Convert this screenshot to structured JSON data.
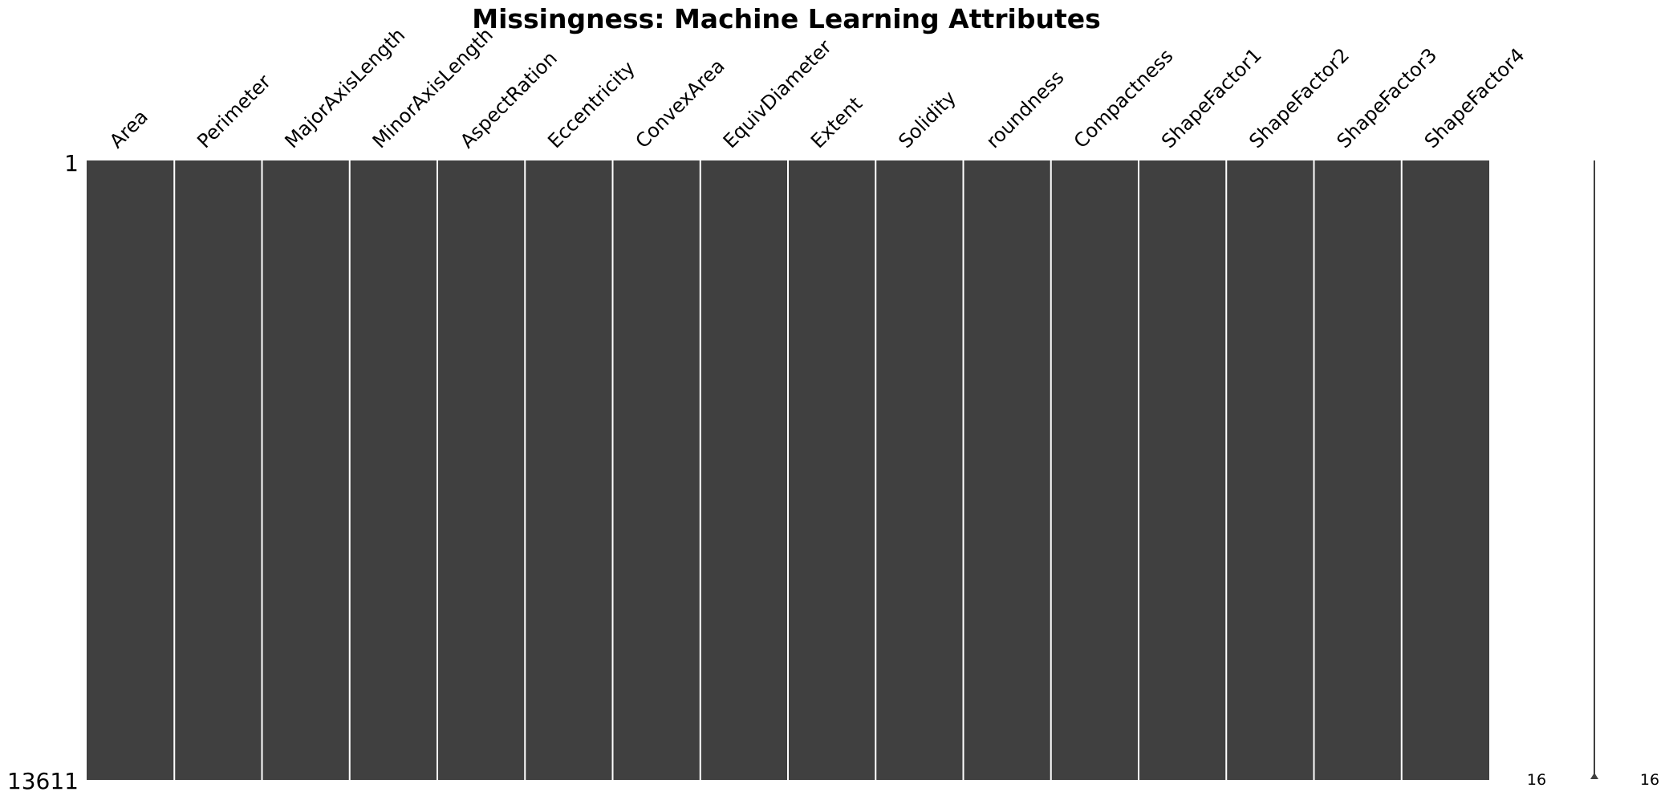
{
  "chart_data": {
    "type": "heatmap",
    "title": "Missingness: Machine Learning Attributes",
    "columns": [
      "Area",
      "Perimeter",
      "MajorAxisLength",
      "MinorAxisLength",
      "AspectRation",
      "Eccentricity",
      "ConvexArea",
      "EquivDiameter",
      "Extent",
      "Solidity",
      "roundness",
      "Compactness",
      "ShapeFactor1",
      "ShapeFactor2",
      "ShapeFactor3",
      "ShapeFactor4"
    ],
    "row_labels": [
      "1",
      "13611"
    ],
    "total_rows": 13611,
    "missing_counts": [
      0,
      0,
      0,
      0,
      0,
      0,
      0,
      0,
      0,
      0,
      0,
      0,
      0,
      0,
      0,
      0
    ],
    "sparkline": {
      "min_label": "16",
      "max_label": "16",
      "min_value": 16,
      "max_value": 16
    },
    "colors": {
      "present": "#404040",
      "missing": "#ffffff",
      "separator": "#ffffff",
      "sparkline": "#404040"
    }
  }
}
